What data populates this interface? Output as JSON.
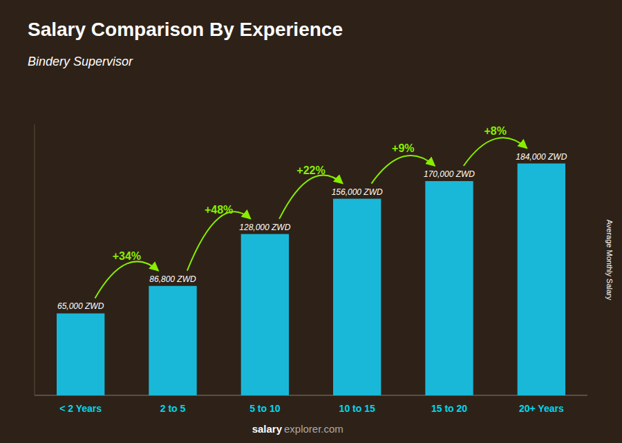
{
  "chart_data": {
    "type": "bar",
    "title": "Salary Comparison By Experience",
    "subtitle": "Bindery Supervisor",
    "ylabel": "Average Monthly Salary",
    "footer": [
      "salary",
      "explorer.com"
    ],
    "categories": [
      "< 2 Years",
      "2 to 5",
      "5 to 10",
      "10 to 15",
      "15 to 20",
      "20+ Years"
    ],
    "values": [
      65000,
      86800,
      128000,
      156000,
      170000,
      184000
    ],
    "value_labels": [
      "65,000 ZWD",
      "86,800 ZWD",
      "128,000 ZWD",
      "156,000 ZWD",
      "170,000 ZWD",
      "184,000 ZWD"
    ],
    "annotations": [
      "+34%",
      "+48%",
      "+22%",
      "+9%",
      "+8%"
    ],
    "color": "#1ab8d8",
    "ylim": [
      0,
      215000
    ],
    "data_labels": true,
    "tick_labels": "x",
    "grid": false
  }
}
